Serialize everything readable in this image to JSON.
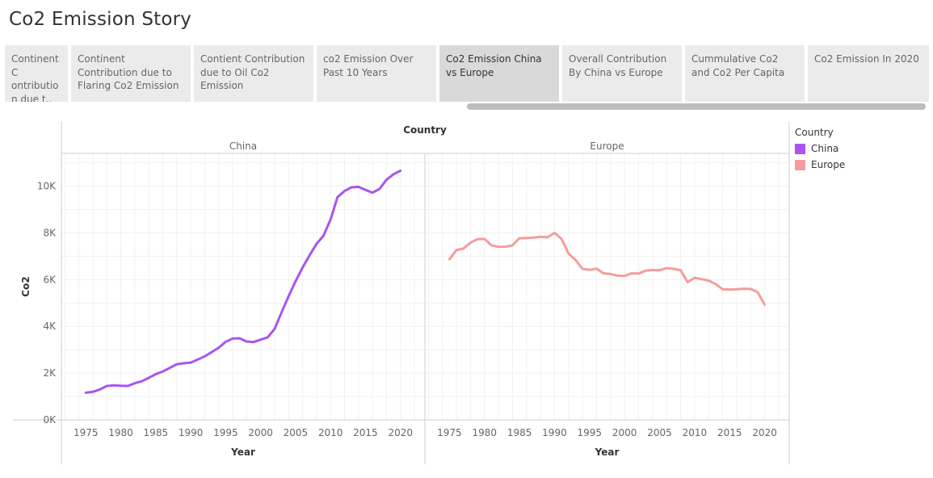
{
  "story": {
    "title": "Co2 Emission Story",
    "points": [
      {
        "label": "Continent C ontribution due t.."
      },
      {
        "label": "Continent Contribution due to Flaring Co2 Emission"
      },
      {
        "label": "Contient Contribution due to Oil Co2 Emission"
      },
      {
        "label": "co2 Emission Over Past 10 Years"
      },
      {
        "label": "Co2 Emission China vs Europe",
        "active": true
      },
      {
        "label": "Overall Contribution By China vs Europe"
      },
      {
        "label": "Cummulative Co2 and Co2 Per Capita"
      },
      {
        "label": "Co2 Emission In 2020"
      }
    ]
  },
  "legend": {
    "title": "Country",
    "items": [
      {
        "label": "China",
        "color": "#a855f0"
      },
      {
        "label": "Europe",
        "color": "#f59c9c"
      }
    ]
  },
  "chart_data": {
    "type": "line",
    "column_header": "Country",
    "panels": [
      "China",
      "Europe"
    ],
    "xlabel": "Year",
    "ylabel": "Co2",
    "x_ticks": [
      1975,
      1980,
      1985,
      1990,
      1995,
      2000,
      2005,
      2010,
      2015,
      2020
    ],
    "y_ticks": [
      "0K",
      "2K",
      "4K",
      "6K",
      "8K",
      "10K"
    ],
    "ylim": [
      0,
      11400
    ],
    "xlim": [
      1971.5,
      2023.5
    ],
    "grid": true,
    "legend_position": "right",
    "x": [
      1975,
      1976,
      1977,
      1978,
      1979,
      1980,
      1981,
      1982,
      1983,
      1984,
      1985,
      1986,
      1987,
      1988,
      1989,
      1990,
      1991,
      1992,
      1993,
      1994,
      1995,
      1996,
      1997,
      1998,
      1999,
      2000,
      2001,
      2002,
      2003,
      2004,
      2005,
      2006,
      2007,
      2008,
      2009,
      2010,
      2011,
      2012,
      2013,
      2014,
      2015,
      2016,
      2017,
      2018,
      2019,
      2020
    ],
    "series": [
      {
        "name": "China",
        "color": "#a855f0",
        "values": [
          1160,
          1200,
          1300,
          1450,
          1480,
          1460,
          1450,
          1570,
          1650,
          1800,
          1960,
          2070,
          2220,
          2380,
          2420,
          2450,
          2580,
          2720,
          2900,
          3090,
          3340,
          3480,
          3490,
          3350,
          3330,
          3430,
          3530,
          3890,
          4600,
          5290,
          5930,
          6520,
          7040,
          7530,
          7880,
          8570,
          9530,
          9790,
          9950,
          9970,
          9840,
          9720,
          9880,
          10270,
          10510,
          10660
        ]
      },
      {
        "name": "Europe",
        "color": "#f59c9c",
        "values": [
          6870,
          7270,
          7330,
          7580,
          7730,
          7740,
          7470,
          7400,
          7410,
          7470,
          7770,
          7780,
          7800,
          7830,
          7810,
          8000,
          7740,
          7120,
          6840,
          6460,
          6420,
          6470,
          6270,
          6240,
          6170,
          6160,
          6270,
          6260,
          6380,
          6410,
          6400,
          6490,
          6460,
          6400,
          5890,
          6080,
          6020,
          5960,
          5810,
          5590,
          5580,
          5590,
          5610,
          5600,
          5460,
          4930
        ]
      }
    ]
  }
}
